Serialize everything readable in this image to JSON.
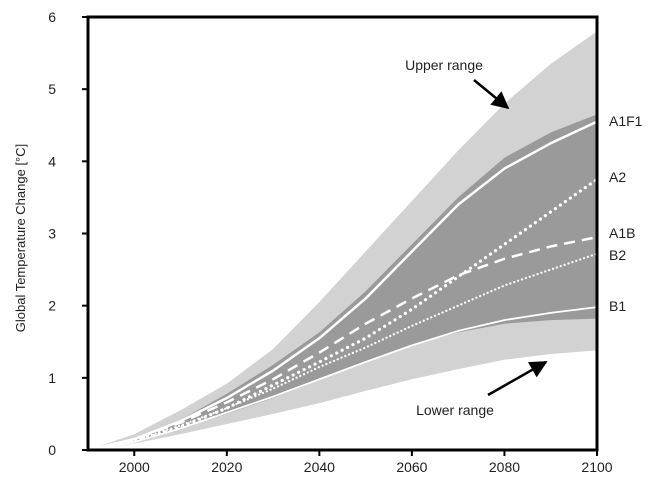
{
  "chart_data": {
    "type": "area",
    "title": "",
    "xlabel": "",
    "ylabel": "Global Temperature Change [°C]",
    "xlim": [
      1990,
      2100
    ],
    "ylim": [
      0,
      6
    ],
    "xticks": [
      2000,
      2020,
      2040,
      2060,
      2080,
      2100
    ],
    "yticks": [
      0,
      1,
      2,
      3,
      4,
      5,
      6
    ],
    "grid": false,
    "x": [
      1990,
      2000,
      2010,
      2020,
      2030,
      2040,
      2050,
      2060,
      2070,
      2080,
      2090,
      2100
    ],
    "ranges": [
      {
        "role": "outer envelope",
        "color": "#d2d2d2",
        "upper": [
          0.0,
          0.22,
          0.55,
          0.92,
          1.4,
          2.05,
          2.75,
          3.45,
          4.15,
          4.8,
          5.35,
          5.8
        ],
        "lower": [
          0.0,
          0.09,
          0.22,
          0.36,
          0.5,
          0.65,
          0.82,
          0.98,
          1.12,
          1.25,
          1.33,
          1.38
        ]
      },
      {
        "role": "inner envelope",
        "color": "#9a9a9a",
        "upper": [
          0.0,
          0.16,
          0.42,
          0.78,
          1.18,
          1.63,
          2.2,
          2.85,
          3.5,
          4.05,
          4.4,
          4.65
        ],
        "lower": [
          0.0,
          0.11,
          0.3,
          0.5,
          0.72,
          0.97,
          1.22,
          1.45,
          1.63,
          1.75,
          1.8,
          1.82
        ]
      }
    ],
    "series": [
      {
        "name": "A1F1",
        "style": "solid",
        "values": [
          0.0,
          0.15,
          0.4,
          0.72,
          1.1,
          1.55,
          2.1,
          2.75,
          3.4,
          3.9,
          4.25,
          4.55
        ]
      },
      {
        "name": "A2",
        "style": "dotted",
        "values": [
          0.0,
          0.12,
          0.32,
          0.58,
          0.9,
          1.22,
          1.55,
          1.95,
          2.4,
          2.85,
          3.3,
          3.75
        ]
      },
      {
        "name": "A1B",
        "style": "dashed",
        "values": [
          0.0,
          0.15,
          0.38,
          0.66,
          0.98,
          1.35,
          1.75,
          2.1,
          2.42,
          2.65,
          2.82,
          2.95
        ]
      },
      {
        "name": "B2",
        "style": "dotted-fine",
        "values": [
          0.0,
          0.13,
          0.34,
          0.58,
          0.85,
          1.15,
          1.42,
          1.72,
          2.0,
          2.28,
          2.5,
          2.72
        ]
      },
      {
        "name": "B1",
        "style": "solid-thin",
        "values": [
          0.0,
          0.11,
          0.3,
          0.52,
          0.74,
          0.98,
          1.22,
          1.45,
          1.65,
          1.8,
          1.9,
          1.98
        ]
      }
    ],
    "annotations": [
      {
        "text": "Upper range",
        "points_to": "outer envelope (top)"
      },
      {
        "text": "Lower range",
        "points_to": "outer envelope (bottom)"
      }
    ],
    "colors": {
      "outer": "#d2d2d2",
      "inner": "#9a9a9a",
      "line": "#ffffff",
      "frame": "#000000"
    }
  }
}
